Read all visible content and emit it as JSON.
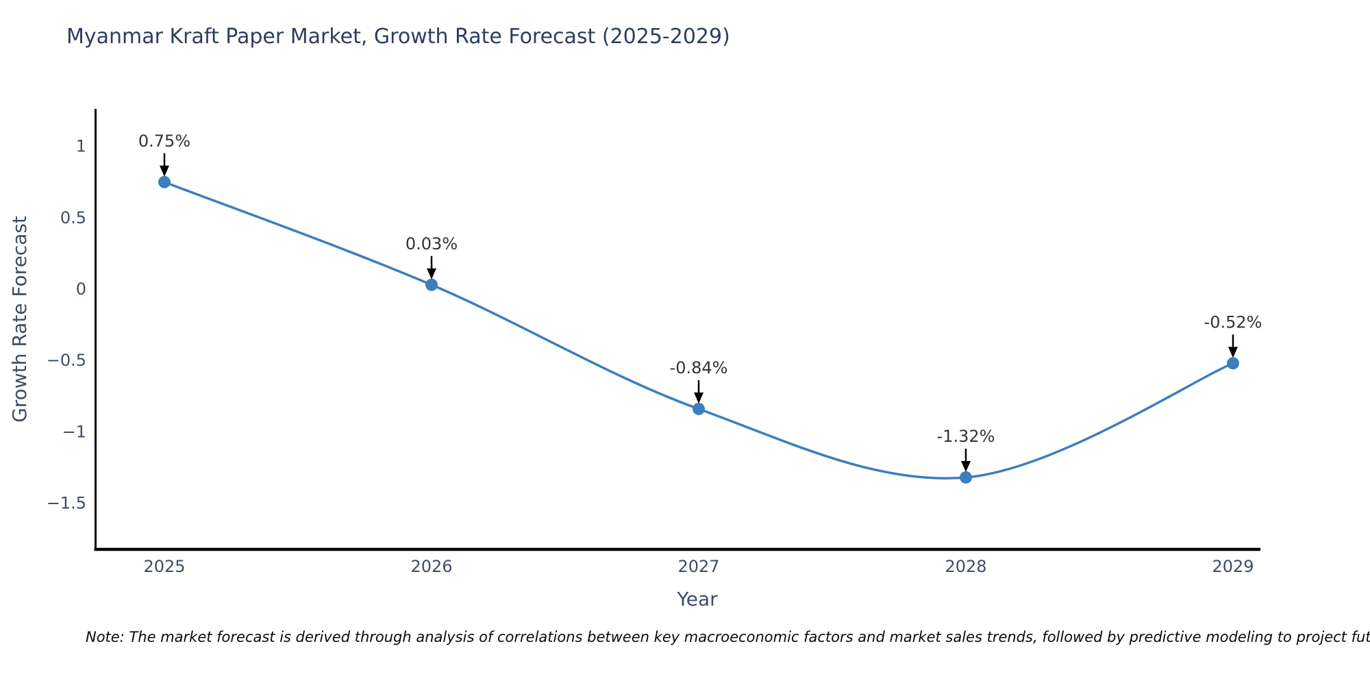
{
  "title": "Myanmar Kraft Paper Market, Growth Rate Forecast (2025-2029)",
  "note": "Note: The market forecast is derived through analysis of correlations between key macroeconomic factors and market sales trends, followed by predictive modeling to project future sa",
  "chart_data": {
    "type": "line",
    "line_shape": "spline",
    "title": "Myanmar Kraft Paper Market, Growth Rate Forecast (2025-2029)",
    "xlabel": "Year",
    "ylabel": "Growth Rate Forecast",
    "categories": [
      "2025",
      "2026",
      "2027",
      "2028",
      "2029"
    ],
    "values": [
      0.75,
      0.03,
      -0.84,
      -1.32,
      -0.52
    ],
    "point_labels": [
      "0.75%",
      "0.03%",
      "-0.84%",
      "-1.32%",
      "-0.52%"
    ],
    "yticks": [
      1,
      0.5,
      0,
      -0.5,
      -1,
      -1.5
    ],
    "ytick_labels": [
      "1",
      "0.5",
      "0",
      "−0.5",
      "−1",
      "−1.5"
    ],
    "ylim": [
      -1.82,
      1.26
    ],
    "grid": false,
    "legend": "none",
    "annotations_have_arrows": true,
    "colors": {
      "line": "#3c7ebf",
      "marker": "#3c7ebf",
      "axis_line": "#000000",
      "tick_text": "#3f4c66",
      "axis_title_text": "#3f4c66",
      "chart_title_text": "#2d3e5f",
      "annotation_text": "#333333",
      "annotation_arrow": "#000000",
      "note_text": "#0a0a0a",
      "background": "#ffffff"
    }
  }
}
